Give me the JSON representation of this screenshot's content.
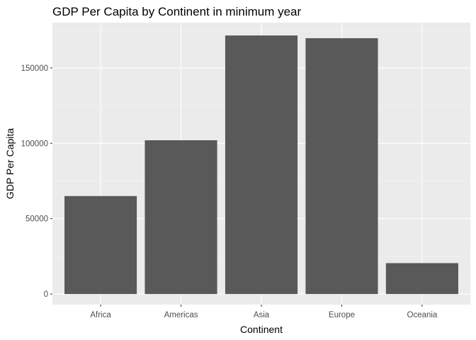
{
  "chart_data": {
    "type": "bar",
    "title": "GDP Per Capita by Continent in minimum year",
    "xlabel": "Continent",
    "ylabel": "GDP Per Capita",
    "categories": [
      "Africa",
      "Americas",
      "Asia",
      "Europe",
      "Oceania"
    ],
    "values": [
      65000,
      102000,
      171500,
      169700,
      20500
    ],
    "ylim": [
      -7000,
      180000
    ],
    "yticks": [
      0,
      50000,
      100000,
      150000
    ],
    "ytick_labels": [
      "0",
      "50000",
      "100000",
      "150000"
    ],
    "grid": true,
    "legend": "none",
    "colors": {
      "bar": "#595959",
      "panel": "#ebebeb",
      "grid_major": "#ffffff",
      "grid_minor": "#f5f5f5",
      "tick": "#333333"
    }
  }
}
